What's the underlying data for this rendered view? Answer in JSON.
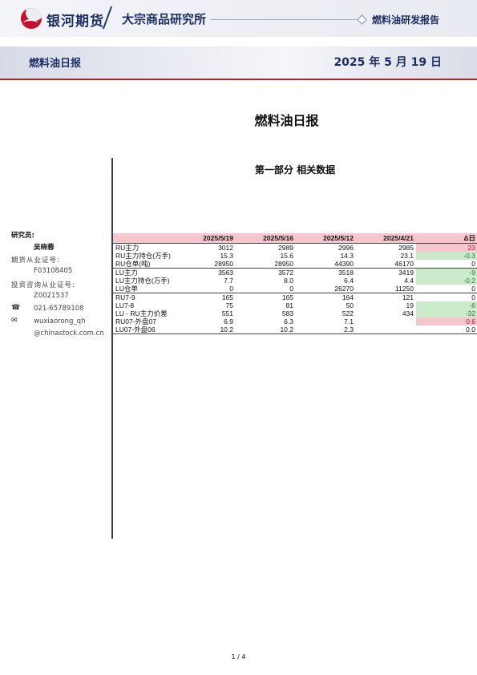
{
  "header": {
    "brand": "银河期货",
    "institute": "大宗商品研究所",
    "report_type": "燃料油研发报告"
  },
  "band": {
    "left_title": "燃料油日报",
    "date": "2025 年 5 月 19 日"
  },
  "main_title": "燃料油日报",
  "section_title": "第一部分 相关数据",
  "sidebar": {
    "researcher_label": "研究员:",
    "researcher_name": "吴晓蓉",
    "futures_cert_label": "期货从业证号:",
    "futures_cert": "F03108405",
    "invest_cert_label": "投资咨询从业证号:",
    "invest_cert": "Z0021537",
    "phone": "021-65789108",
    "email_1": "wuxiaorong_qh",
    "email_2": "@chinastock.com.cn"
  },
  "table": {
    "headers": [
      "",
      "2025/5/19",
      "2025/5/16",
      "2025/5/12",
      "2025/4/21",
      "Δ日"
    ],
    "rows": [
      {
        "label": "RU主力",
        "v": [
          "3012",
          "2989",
          "2996",
          "2985",
          "23"
        ],
        "tone": "pos"
      },
      {
        "label": "RU主力持仓(万手)",
        "v": [
          "15.3",
          "15.6",
          "14.3",
          "23.1",
          "-0.3"
        ],
        "tone": "neg"
      },
      {
        "label": "RU仓单(吨)",
        "v": [
          "28950",
          "28950",
          "44390",
          "46170",
          "0"
        ],
        "tone": "zero"
      },
      {
        "label": "LU主力",
        "v": [
          "3563",
          "3572",
          "3518",
          "3419",
          "-9"
        ],
        "tone": "neg"
      },
      {
        "label": "LU主力持仓(万手)",
        "v": [
          "7.7",
          "8.0",
          "6.4",
          "4.4",
          "-0.2"
        ],
        "tone": "neg"
      },
      {
        "label": "LU仓单",
        "v": [
          "0",
          "0",
          "26270",
          "11250",
          "0"
        ],
        "tone": "zero"
      },
      {
        "label": "RU7-9",
        "v": [
          "165",
          "165",
          "164",
          "121",
          "0"
        ],
        "tone": "zero"
      },
      {
        "label": "LU7-8",
        "v": [
          "75",
          "81",
          "50",
          "19",
          "-6"
        ],
        "tone": "neg"
      },
      {
        "label": "LU - RU主力价差",
        "v": [
          "551",
          "583",
          "522",
          "434",
          "-32"
        ],
        "tone": "neg"
      },
      {
        "label": "RU07-外盘07",
        "v": [
          "6.9",
          "6.3",
          "7.1",
          "",
          "0.6"
        ],
        "tone": "pos"
      },
      {
        "label": "LU07-外盘06",
        "v": [
          "10.2",
          "10.2",
          "2.3",
          "",
          "0.0"
        ],
        "tone": "zero"
      }
    ]
  },
  "page_number": "1 / 4",
  "colors": {
    "brand_blue": "#1c2f63",
    "brand_red": "#c8102e",
    "header_pink": "#f7c6cc",
    "positive_green": "#c9ebc9"
  }
}
